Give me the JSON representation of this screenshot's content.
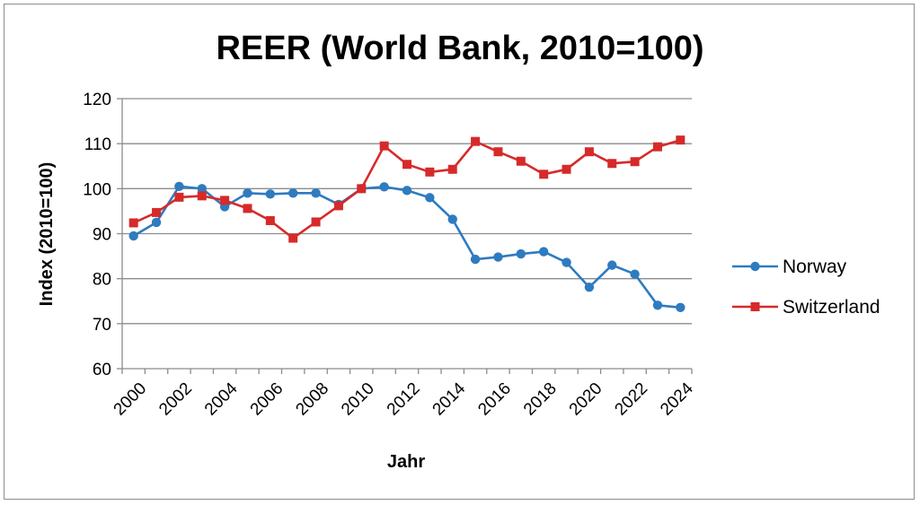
{
  "chart_data": {
    "type": "line",
    "title": "REER (World Bank, 2010=100)",
    "xlabel": "Jahr",
    "ylabel": "Index (2010=100)",
    "ylim": [
      60,
      120
    ],
    "yticks": [
      60,
      70,
      80,
      90,
      100,
      110,
      120
    ],
    "x": [
      2000,
      2001,
      2002,
      2003,
      2004,
      2005,
      2006,
      2007,
      2008,
      2009,
      2010,
      2011,
      2012,
      2013,
      2014,
      2015,
      2016,
      2017,
      2018,
      2019,
      2020,
      2021,
      2022,
      2023,
      2024
    ],
    "xtick_labels": [
      "2000",
      "2002",
      "2004",
      "2006",
      "2008",
      "2010",
      "2012",
      "2014",
      "2016",
      "2018",
      "2020",
      "2022",
      "2024"
    ],
    "grid": true,
    "legend_position": "right",
    "series": [
      {
        "name": "Norway",
        "color": "#2e7bbf",
        "marker": "circle",
        "values": [
          89.5,
          92.5,
          100.5,
          100.0,
          96.0,
          99.0,
          98.8,
          99.0,
          99.0,
          96.5,
          100.0,
          100.4,
          99.6,
          98.0,
          93.2,
          84.3,
          84.8,
          85.5,
          86.0,
          83.6,
          78.1,
          83.0,
          81.0,
          74.1,
          73.6
        ]
      },
      {
        "name": "Switzerland",
        "color": "#d62a2a",
        "marker": "square",
        "values": [
          92.4,
          94.7,
          98.1,
          98.4,
          97.4,
          95.6,
          92.9,
          89.0,
          92.6,
          96.2,
          100.0,
          109.5,
          105.4,
          103.7,
          104.3,
          110.5,
          108.2,
          106.1,
          103.2,
          104.3,
          108.2,
          105.6,
          106.0,
          109.3,
          110.8
        ]
      }
    ]
  }
}
